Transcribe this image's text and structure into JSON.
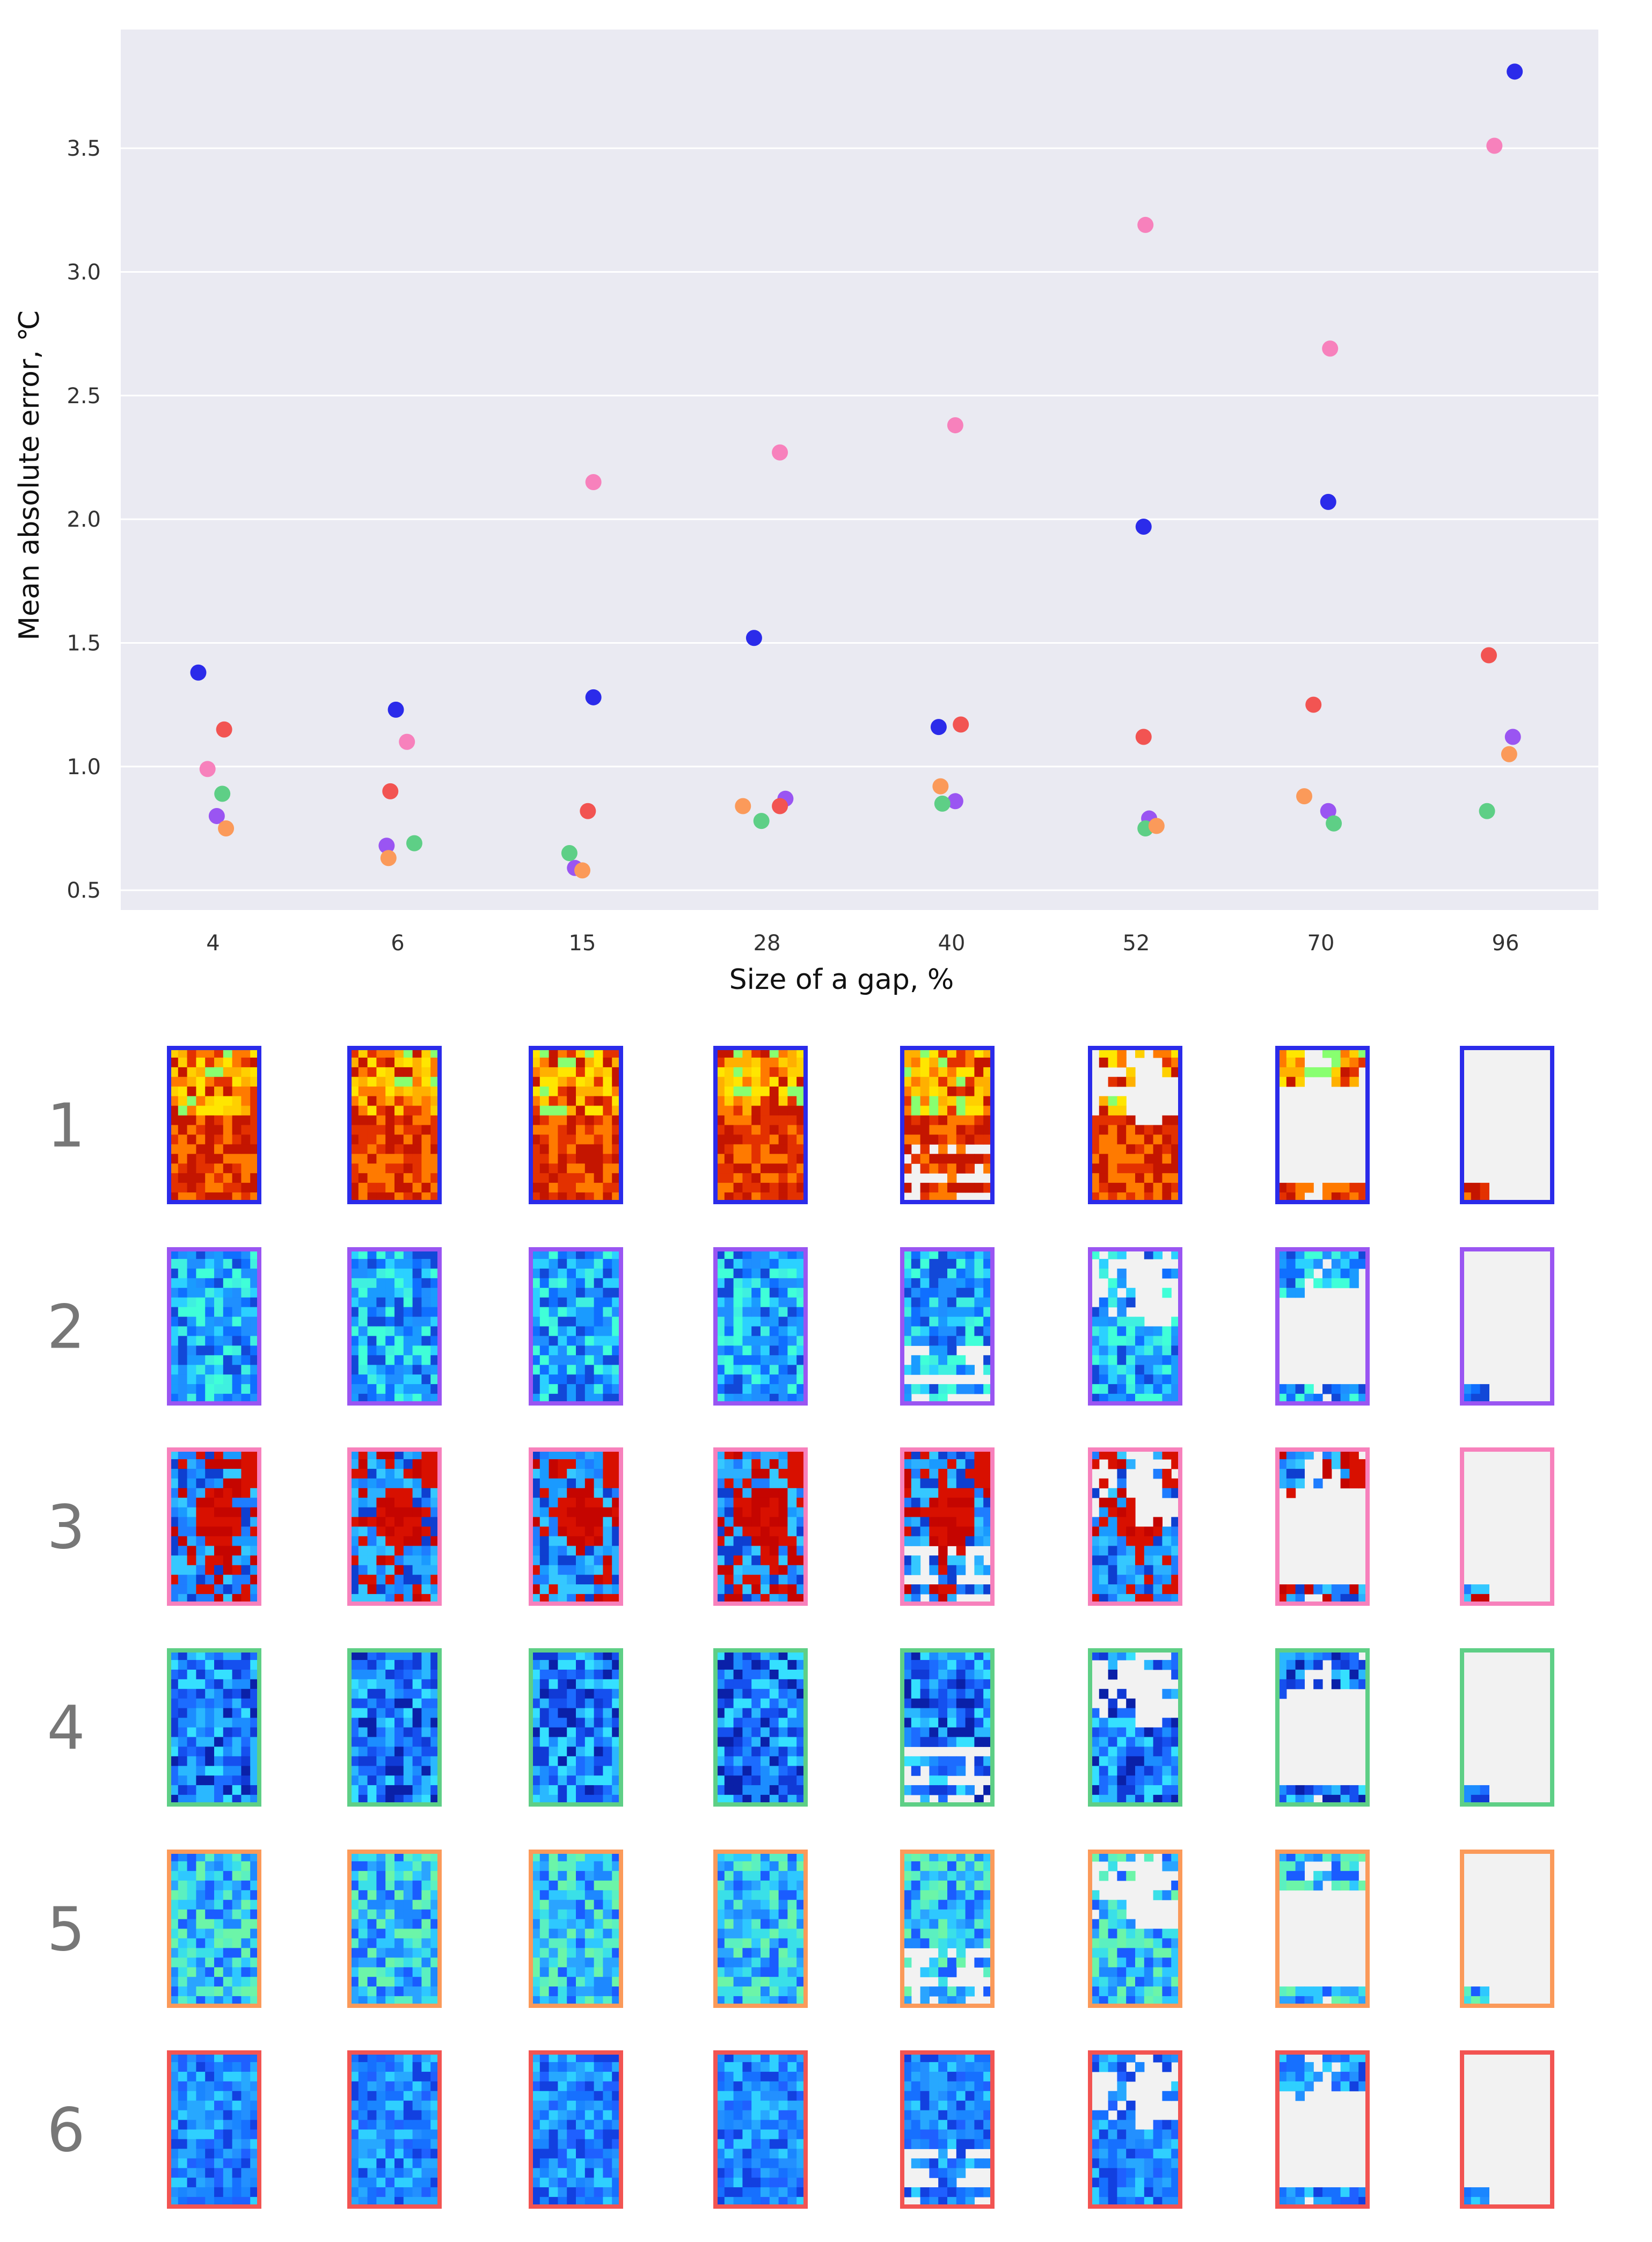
{
  "chart_data": {
    "type": "scatter",
    "xlabel": "Size of a gap, %",
    "ylabel": "Mean absolute error, ℃",
    "categories": [
      "4",
      "6",
      "15",
      "28",
      "40",
      "52",
      "70",
      "96"
    ],
    "yticks": [
      "0.5",
      "1.0",
      "1.5",
      "2.0",
      "2.5",
      "3.0",
      "3.5"
    ],
    "ylim": [
      0.42,
      3.98
    ],
    "grid": true,
    "series": [
      {
        "name": "1",
        "color": "#2b2bea",
        "values": [
          1.38,
          1.23,
          1.28,
          1.52,
          1.16,
          1.97,
          2.07,
          3.81
        ],
        "offsets": [
          -0.08,
          -0.01,
          0.06,
          -0.07,
          -0.07,
          0.04,
          0.04,
          0.05
        ]
      },
      {
        "name": "2",
        "color": "#9a55f2",
        "values": [
          0.8,
          0.68,
          0.59,
          0.87,
          0.86,
          0.79,
          0.82,
          1.12
        ],
        "offsets": [
          0.02,
          -0.06,
          -0.04,
          0.1,
          0.02,
          0.07,
          0.04,
          0.04
        ]
      },
      {
        "name": "3",
        "color": "#f781bc",
        "values": [
          0.99,
          1.1,
          2.15,
          2.27,
          2.38,
          3.19,
          2.69,
          3.51
        ],
        "offsets": [
          -0.03,
          0.05,
          0.06,
          0.07,
          0.02,
          0.05,
          0.05,
          -0.06
        ]
      },
      {
        "name": "4",
        "color": "#5ecf86",
        "values": [
          0.89,
          0.69,
          0.65,
          0.78,
          0.85,
          0.75,
          0.77,
          0.82
        ],
        "offsets": [
          0.05,
          0.09,
          -0.07,
          -0.03,
          -0.05,
          0.05,
          0.07,
          -0.1
        ]
      },
      {
        "name": "5",
        "color": "#fb9a5a",
        "values": [
          0.75,
          0.63,
          0.58,
          0.84,
          0.92,
          0.76,
          0.88,
          1.05
        ],
        "offsets": [
          0.07,
          -0.05,
          0.0,
          -0.13,
          -0.06,
          0.11,
          -0.09,
          0.02
        ]
      },
      {
        "name": "6",
        "color": "#f25452",
        "values": [
          1.15,
          0.9,
          0.82,
          0.84,
          1.17,
          1.12,
          1.25,
          1.45
        ],
        "offsets": [
          0.06,
          -0.04,
          0.03,
          0.07,
          0.05,
          0.04,
          -0.04,
          -0.09
        ]
      }
    ]
  },
  "thumbnails": {
    "row_labels": [
      "1",
      "2",
      "3",
      "4",
      "5",
      "6"
    ],
    "row_colors": [
      "#2b2bea",
      "#9a55f2",
      "#f781bc",
      "#5ecf86",
      "#fb9a5a",
      "#f25452"
    ],
    "gap_fractions": [
      0.04,
      0.06,
      0.15,
      0.28,
      0.4,
      0.52,
      0.7,
      0.96
    ],
    "row_palettes": [
      [
        "#ffe600",
        "#ffb000",
        "#ff7a00",
        "#e33100",
        "#c41500",
        "#88ff70",
        "#ffd000"
      ],
      [
        "#1f8fff",
        "#2bd1ff",
        "#1248d8",
        "#40ffd8",
        "#0f6fff",
        "#1a9bff",
        "#3ff0e0"
      ],
      [
        "#1e7dff",
        "#35c8ff",
        "#0e3fd0",
        "#d81000",
        "#c50500",
        "#1a9aff",
        "#2cb0ff"
      ],
      [
        "#103ad6",
        "#1c6cff",
        "#2ab8ff",
        "#0a20a8",
        "#35e0ff",
        "#1550ef",
        "#1c8dff"
      ],
      [
        "#1d88ff",
        "#2ec8ff",
        "#6cf5a8",
        "#3ae0e8",
        "#1a5cff",
        "#5bf0c0",
        "#2aa4ff"
      ],
      [
        "#1f60ff",
        "#1a86ff",
        "#27a8ff",
        "#1240e0",
        "#2fd0ff",
        "#1670ff",
        "#2390ff"
      ]
    ],
    "empty_color": "#f2f2f2"
  }
}
